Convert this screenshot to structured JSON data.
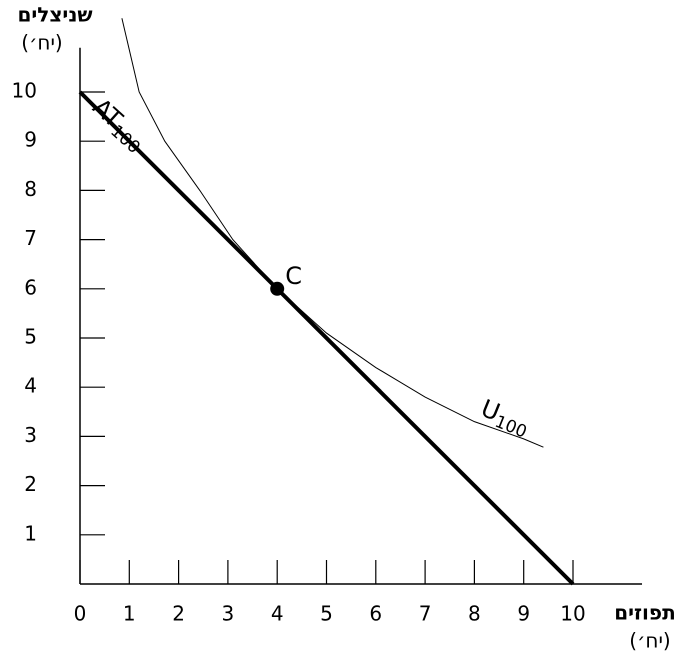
{
  "chart_data": {
    "type": "line",
    "y_label": "שניצלים",
    "y_unit": "(יח׳)",
    "x_label": "תפוזים",
    "x_unit": "(יח׳)",
    "xlim": [
      0,
      11.4
    ],
    "ylim": [
      0,
      10.9
    ],
    "xticks": [
      0,
      1,
      2,
      3,
      4,
      5,
      6,
      7,
      8,
      9,
      10
    ],
    "yticks": [
      1,
      2,
      3,
      4,
      5,
      6,
      7,
      8,
      9,
      10
    ],
    "series": [
      {
        "name": "AT",
        "subscript": "100",
        "color": "#000000",
        "width": 4,
        "x": [
          0,
          10
        ],
        "values": [
          10,
          0
        ]
      },
      {
        "name": "U",
        "subscript": "100",
        "color": "#000000",
        "width": 1,
        "x": [
          0.85,
          1.2,
          1.72,
          2.43,
          3.1,
          4,
          5,
          6,
          7,
          8,
          9,
          9.4
        ],
        "values": [
          11.5,
          10,
          9,
          8,
          7,
          6,
          5.1,
          4.4,
          3.8,
          3.3,
          2.95,
          2.78
        ]
      }
    ],
    "point": {
      "label": "C",
      "x": 4,
      "y": 6
    }
  }
}
